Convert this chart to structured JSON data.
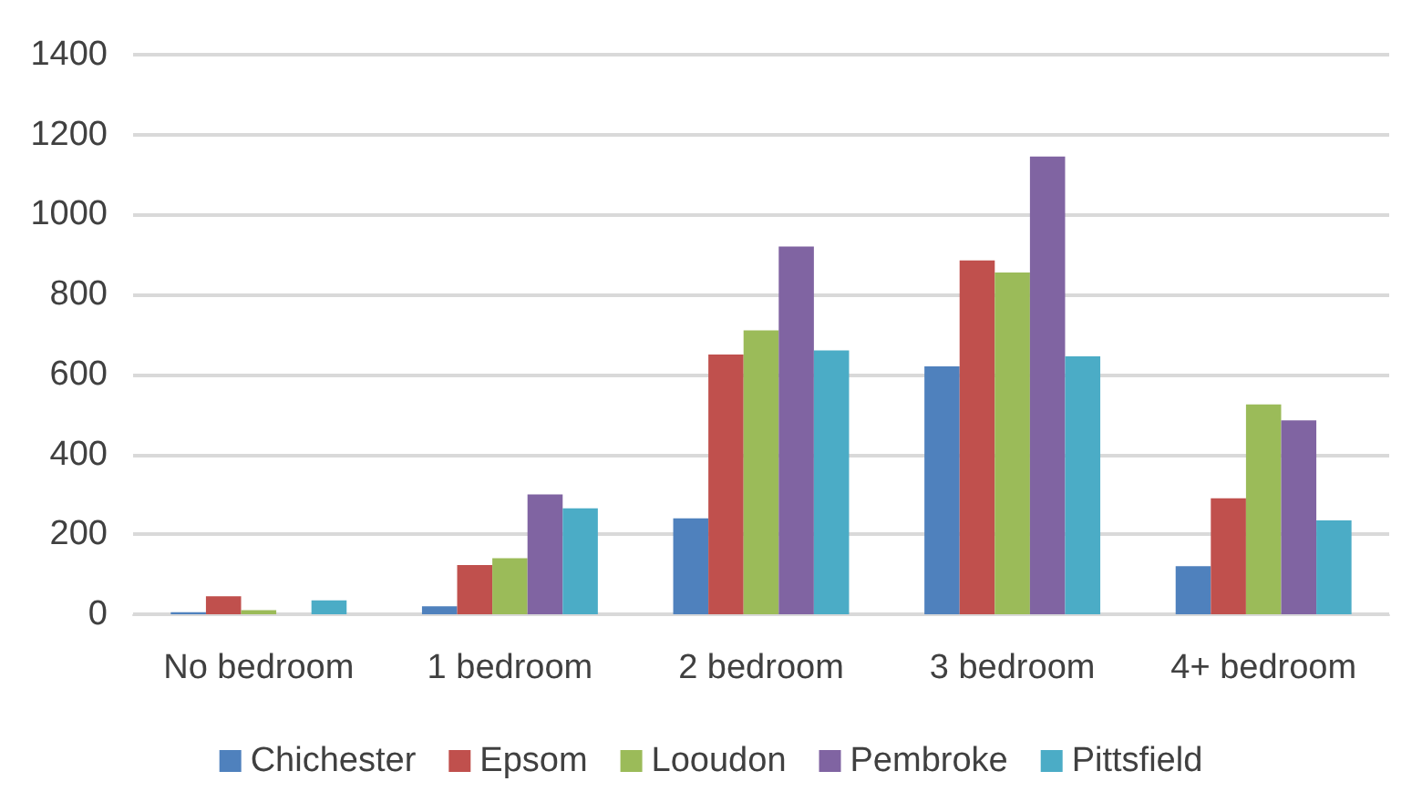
{
  "chart_data": {
    "type": "bar",
    "categories": [
      "No bedroom",
      "1 bedroom",
      "2 bedroom",
      "3 bedroom",
      "4+ bedroom"
    ],
    "series": [
      {
        "name": "Chichester",
        "color": "#4f81bd",
        "values": [
          5,
          20,
          240,
          620,
          120
        ]
      },
      {
        "name": "Epsom",
        "color": "#c0504d",
        "values": [
          45,
          123,
          650,
          885,
          290
        ]
      },
      {
        "name": "Looudon",
        "color": "#9bbb59",
        "values": [
          10,
          140,
          710,
          855,
          525
        ]
      },
      {
        "name": "Pembroke",
        "color": "#8064a2",
        "values": [
          null,
          300,
          920,
          1145,
          485
        ]
      },
      {
        "name": "Pittsfield",
        "color": "#4bacc6",
        "values": [
          35,
          265,
          660,
          645,
          235
        ]
      }
    ],
    "ylim": [
      0,
      1400
    ],
    "yticks": [
      0,
      200,
      400,
      600,
      800,
      1000,
      1200,
      1400
    ],
    "grid": "y",
    "legend": "bottom"
  }
}
